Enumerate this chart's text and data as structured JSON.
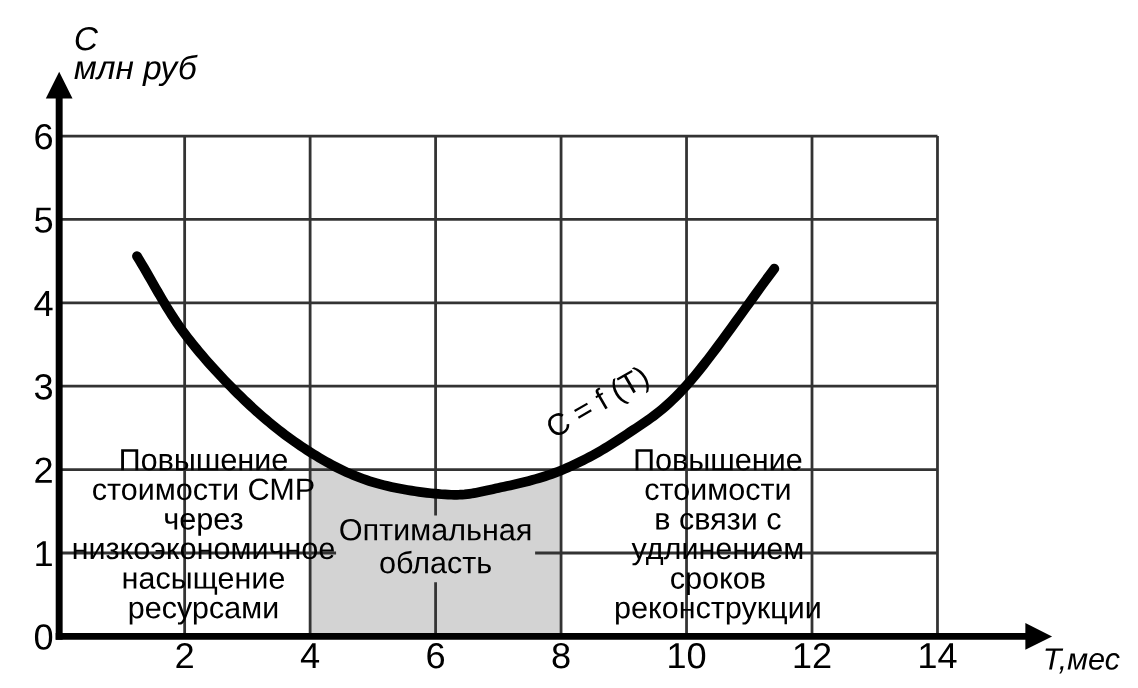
{
  "chart_data": {
    "type": "line",
    "xlabel": "T,мес",
    "ylabel": "C\nмлн руб",
    "x": [
      1.24,
      2,
      3,
      4,
      5,
      6.2,
      7,
      8,
      9,
      10,
      11.4
    ],
    "series": [
      {
        "color": "#000000",
        "values": [
          4.56,
          3.63,
          2.8,
          2.21,
          1.85,
          1.7,
          1.78,
          1.99,
          2.4,
          3.01,
          4.41
        ]
      }
    ],
    "xlim": [
      0,
      15.6
    ],
    "ylim": [
      0,
      6.6
    ],
    "xticks": [
      2,
      4,
      6,
      8,
      10,
      12,
      14
    ],
    "yticks": [
      0,
      1,
      2,
      3,
      4,
      5,
      6
    ],
    "grid": true,
    "marker": "none",
    "line_style": "solid",
    "bands": [
      {
        "axis": "x",
        "from": 4,
        "to": 8,
        "label": "Оптимальная\nобласть",
        "color": "#d3d3d3"
      }
    ],
    "annotations": [
      {
        "text": "C = f (T)",
        "x": 8.6,
        "y": 2.3
      },
      "Повышение\nстоимости СМР\nчерез\nнизкоэкономичное\nнасыщение\nресурсами",
      "Повышение\nстоимости\nв связи с\nудлинением\nсроков\nреконструкции"
    ]
  }
}
